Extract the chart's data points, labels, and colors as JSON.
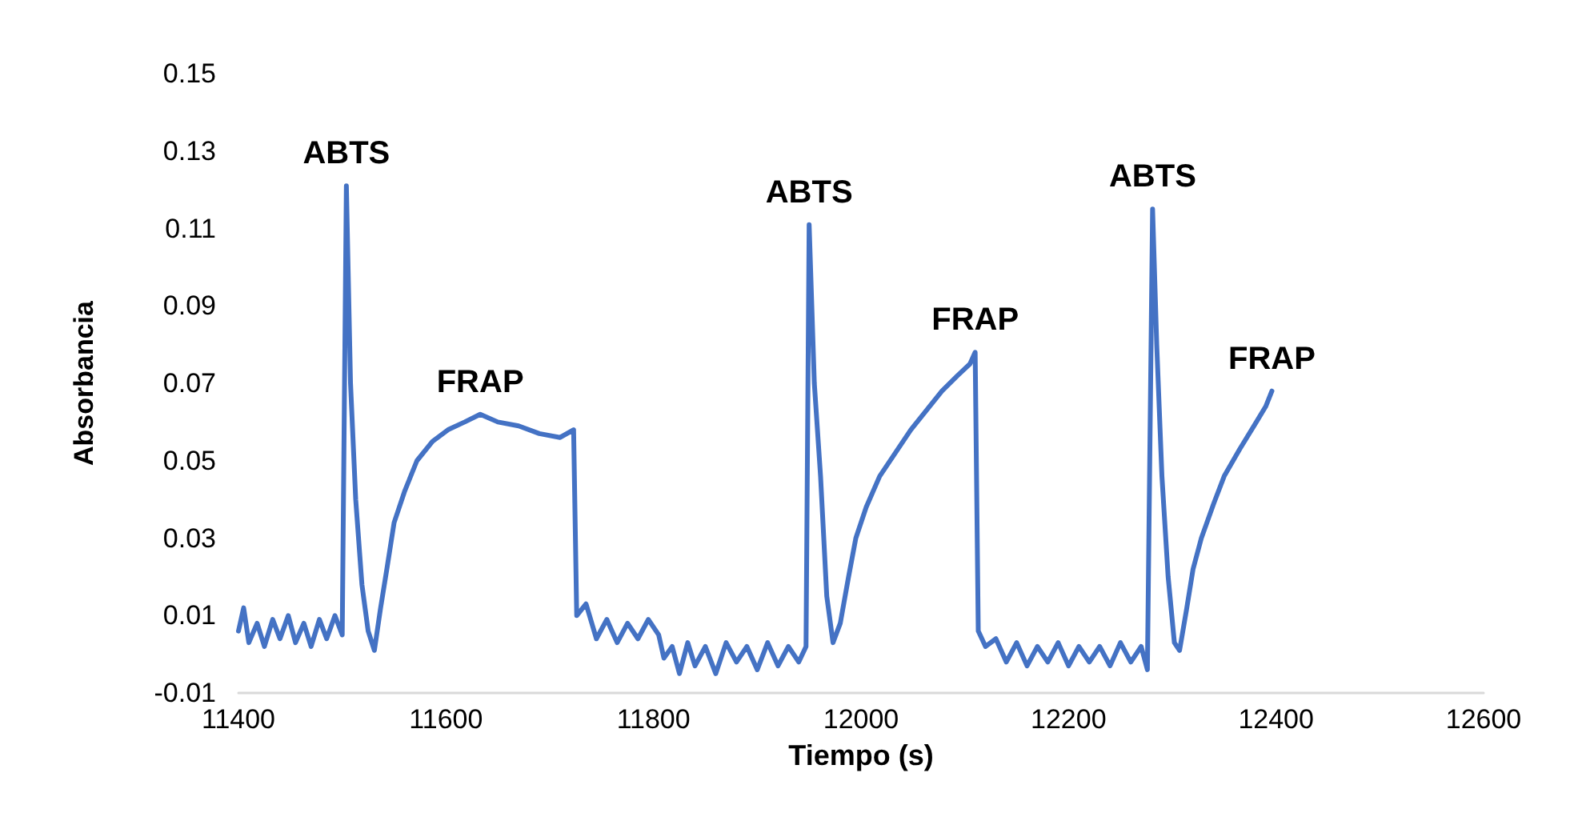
{
  "chart_data": {
    "type": "line",
    "xlabel": "Tiempo (s)",
    "ylabel": "Absorbancia",
    "x": [
      11400,
      11405,
      11410,
      11418,
      11425,
      11433,
      11440,
      11448,
      11455,
      11463,
      11470,
      11478,
      11485,
      11493,
      11500,
      11504,
      11508,
      11513,
      11519,
      11525,
      11531,
      11537,
      11543,
      11550,
      11560,
      11572,
      11587,
      11602,
      11618,
      11633,
      11650,
      11670,
      11690,
      11710,
      11723,
      11726,
      11735,
      11745,
      11755,
      11765,
      11775,
      11785,
      11795,
      11805,
      11810,
      11818,
      11825,
      11833,
      11840,
      11850,
      11860,
      11870,
      11880,
      11890,
      11900,
      11910,
      11920,
      11930,
      11940,
      11947,
      11950,
      11955,
      11961,
      11967,
      11973,
      11980,
      11988,
      11995,
      12005,
      12018,
      12033,
      12048,
      12063,
      12078,
      12093,
      12105,
      12110,
      12113,
      12120,
      12130,
      12140,
      12150,
      12160,
      12170,
      12180,
      12190,
      12200,
      12210,
      12220,
      12230,
      12240,
      12250,
      12260,
      12270,
      12276,
      12281,
      12285,
      12290,
      12296,
      12302,
      12307,
      12314,
      12320,
      12328,
      12340,
      12350,
      12365,
      12381,
      12390,
      12396
    ],
    "series": [
      {
        "color": "#4472c4",
        "values": [
          0.006,
          0.012,
          0.003,
          0.008,
          0.002,
          0.009,
          0.004,
          0.01,
          0.003,
          0.008,
          0.002,
          0.009,
          0.004,
          0.01,
          0.005,
          0.121,
          0.07,
          0.04,
          0.018,
          0.006,
          0.001,
          0.012,
          0.022,
          0.034,
          0.042,
          0.05,
          0.055,
          0.058,
          0.06,
          0.062,
          0.06,
          0.059,
          0.057,
          0.056,
          0.058,
          0.01,
          0.013,
          0.004,
          0.009,
          0.003,
          0.008,
          0.004,
          0.009,
          0.005,
          -0.001,
          0.002,
          -0.005,
          0.003,
          -0.003,
          0.002,
          -0.005,
          0.003,
          -0.002,
          0.002,
          -0.004,
          0.003,
          -0.003,
          0.002,
          -0.002,
          0.002,
          0.111,
          0.07,
          0.046,
          0.015,
          0.003,
          0.008,
          0.02,
          0.03,
          0.038,
          0.046,
          0.052,
          0.058,
          0.063,
          0.068,
          0.072,
          0.075,
          0.078,
          0.006,
          0.002,
          0.004,
          -0.002,
          0.003,
          -0.003,
          0.002,
          -0.002,
          0.003,
          -0.003,
          0.002,
          -0.002,
          0.002,
          -0.003,
          0.003,
          -0.002,
          0.002,
          -0.004,
          0.115,
          0.08,
          0.046,
          0.02,
          0.003,
          0.001,
          0.012,
          0.022,
          0.03,
          0.039,
          0.046,
          0.053,
          0.06,
          0.064,
          0.068
        ]
      }
    ],
    "xlim": [
      11400,
      12600
    ],
    "xticks": [
      11400,
      11600,
      11800,
      12000,
      12200,
      12400,
      12600
    ],
    "ylim": [
      -0.01,
      0.15
    ],
    "yticks": [
      -0.01,
      0.01,
      0.03,
      0.05,
      0.07,
      0.09,
      0.11,
      0.13,
      0.15
    ],
    "grid": false,
    "marker": "none",
    "line_style": "solid",
    "annotations": [
      {
        "text": "ABTS",
        "x": 11504,
        "y": 0.121
      },
      {
        "text": "FRAP",
        "x": 11633,
        "y": 0.062
      },
      {
        "text": "ABTS",
        "x": 11950,
        "y": 0.111
      },
      {
        "text": "FRAP",
        "x": 12110,
        "y": 0.078
      },
      {
        "text": "ABTS",
        "x": 12281,
        "y": 0.115
      },
      {
        "text": "FRAP",
        "x": 12396,
        "y": 0.068
      }
    ]
  }
}
